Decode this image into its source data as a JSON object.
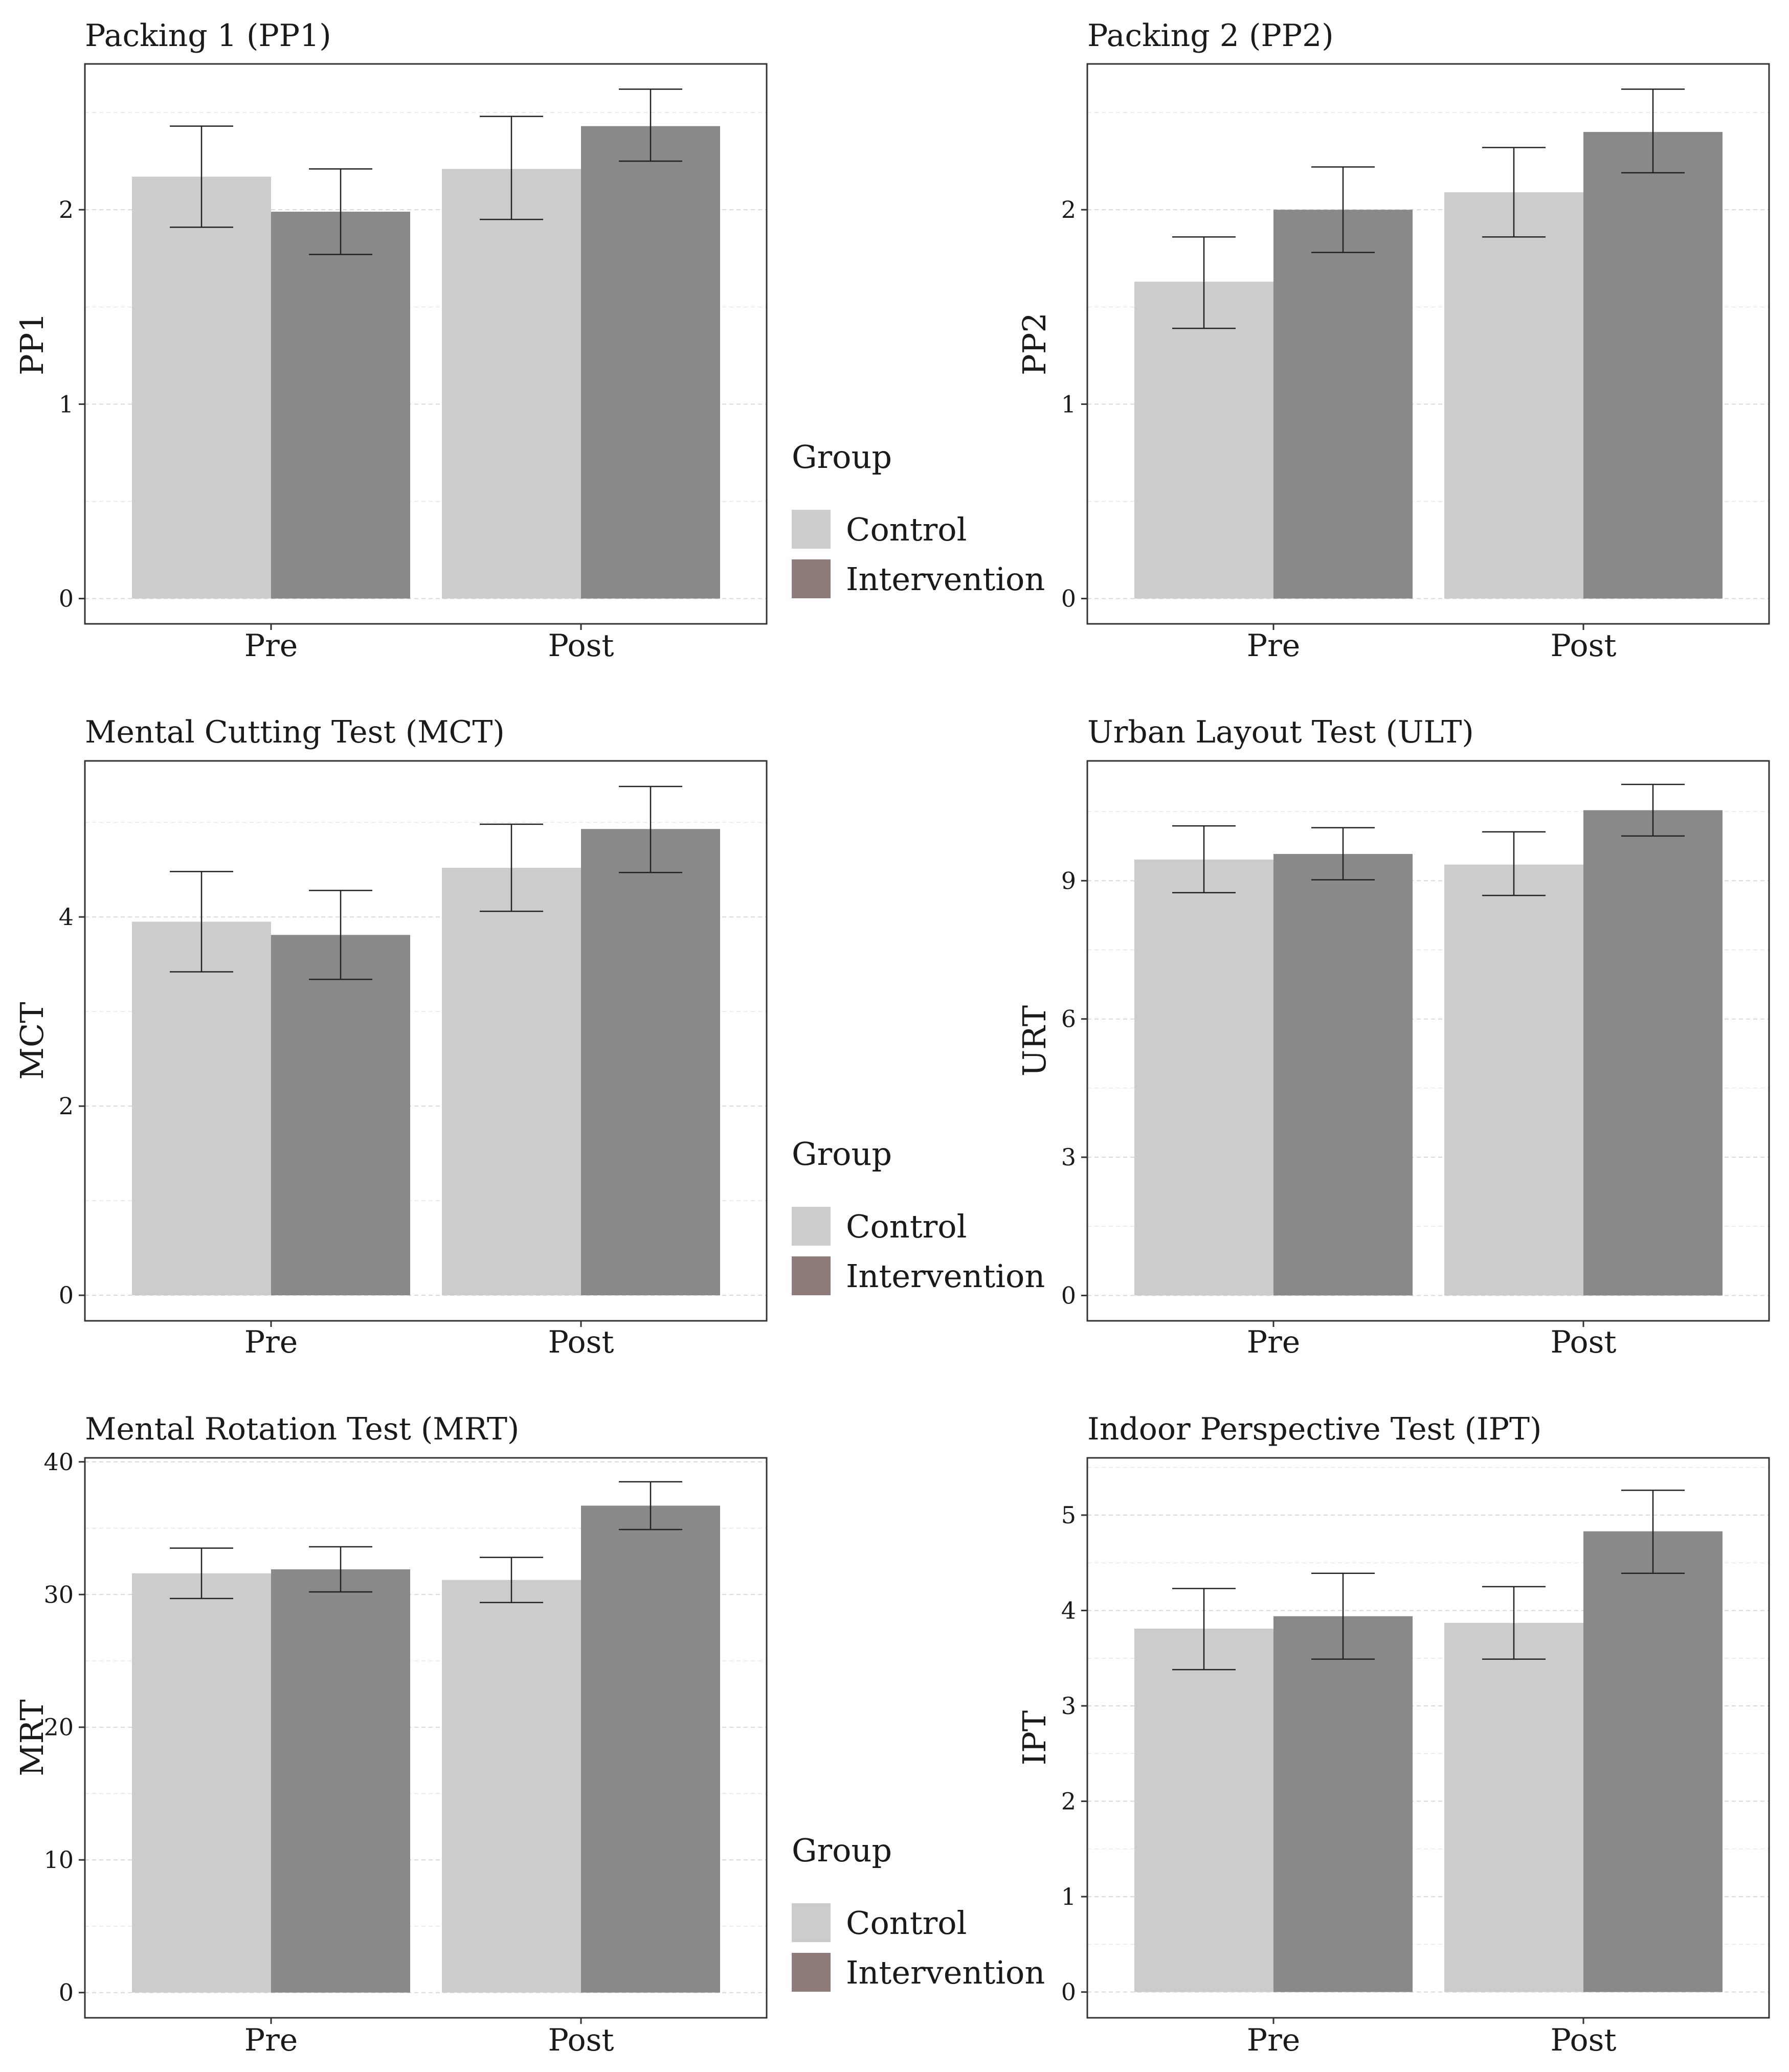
{
  "colors": {
    "control": "#cccccc",
    "intervention_bar": "#898989",
    "intervention_legend": "#8e7b7a",
    "frame": "#333333",
    "grid": "#d9d9d9",
    "error_bar": "#222222"
  },
  "legend": {
    "title": "Group",
    "entries": [
      "Control",
      "Intervention"
    ]
  },
  "chart_data": [
    {
      "type": "bar",
      "title": "Packing 1 (PP1)",
      "xlabel": "",
      "ylabel": "PP1",
      "categories": [
        "Pre",
        "Post"
      ],
      "ylim": [
        -0.13,
        2.75
      ],
      "yticks": [
        0,
        1,
        2
      ],
      "series": [
        {
          "name": "Control",
          "values": [
            2.17,
            2.21
          ],
          "error_low": [
            1.91,
            1.95
          ],
          "error_high": [
            2.43,
            2.48
          ]
        },
        {
          "name": "Intervention",
          "values": [
            1.99,
            2.43
          ],
          "error_low": [
            1.77,
            2.25
          ],
          "error_high": [
            2.21,
            2.62
          ]
        }
      ]
    },
    {
      "type": "bar",
      "title": "Packing 2 (PP2)",
      "xlabel": "",
      "ylabel": "PP2",
      "categories": [
        "Pre",
        "Post"
      ],
      "ylim": [
        -0.13,
        2.75
      ],
      "yticks": [
        0,
        1,
        2
      ],
      "series": [
        {
          "name": "Control",
          "values": [
            1.63,
            2.09
          ],
          "error_low": [
            1.39,
            1.86
          ],
          "error_high": [
            1.86,
            2.32
          ]
        },
        {
          "name": "Intervention",
          "values": [
            2.0,
            2.4
          ],
          "error_low": [
            1.78,
            2.19
          ],
          "error_high": [
            2.22,
            2.62
          ]
        }
      ]
    },
    {
      "type": "bar",
      "title": "Mental Cutting Test (MCT)",
      "xlabel": "",
      "ylabel": "MCT",
      "categories": [
        "Pre",
        "Post"
      ],
      "ylim": [
        -0.27,
        5.65
      ],
      "yticks": [
        0,
        2,
        4
      ],
      "series": [
        {
          "name": "Control",
          "values": [
            3.95,
            4.52
          ],
          "error_low": [
            3.42,
            4.06
          ],
          "error_high": [
            4.48,
            4.98
          ]
        },
        {
          "name": "Intervention",
          "values": [
            3.81,
            4.93
          ],
          "error_low": [
            3.34,
            4.47
          ],
          "error_high": [
            4.28,
            5.38
          ]
        }
      ]
    },
    {
      "type": "bar",
      "title": "Urban Layout Test (ULT)",
      "xlabel": "",
      "ylabel": "URT",
      "categories": [
        "Pre",
        "Post"
      ],
      "ylim": [
        -0.55,
        11.6
      ],
      "yticks": [
        0,
        3,
        6,
        9
      ],
      "series": [
        {
          "name": "Control",
          "values": [
            9.46,
            9.35
          ],
          "error_low": [
            8.74,
            8.68
          ],
          "error_high": [
            10.19,
            10.06
          ]
        },
        {
          "name": "Intervention",
          "values": [
            9.58,
            10.53
          ],
          "error_low": [
            9.02,
            9.97
          ],
          "error_high": [
            10.15,
            11.09
          ]
        }
      ]
    },
    {
      "type": "bar",
      "title": "Mental Rotation Test (MRT)",
      "xlabel": "",
      "ylabel": "MRT",
      "categories": [
        "Pre",
        "Post"
      ],
      "ylim": [
        -1.9,
        40.3
      ],
      "yticks": [
        0,
        10,
        20,
        30,
        40
      ],
      "series": [
        {
          "name": "Control",
          "values": [
            31.6,
            31.1
          ],
          "error_low": [
            29.7,
            29.4
          ],
          "error_high": [
            33.5,
            32.8
          ]
        },
        {
          "name": "Intervention",
          "values": [
            31.9,
            36.7
          ],
          "error_low": [
            30.2,
            34.9
          ],
          "error_high": [
            33.6,
            38.5
          ]
        }
      ]
    },
    {
      "type": "bar",
      "title": "Indoor Perspective Test (IPT)",
      "xlabel": "",
      "ylabel": "IPT",
      "categories": [
        "Pre",
        "Post"
      ],
      "ylim": [
        -0.27,
        5.6
      ],
      "yticks": [
        0,
        1,
        2,
        3,
        4,
        5
      ],
      "series": [
        {
          "name": "Control",
          "values": [
            3.81,
            3.87
          ],
          "error_low": [
            3.38,
            3.49
          ],
          "error_high": [
            4.23,
            4.25
          ]
        },
        {
          "name": "Intervention",
          "values": [
            3.94,
            4.83
          ],
          "error_low": [
            3.49,
            4.39
          ],
          "error_high": [
            4.39,
            5.26
          ]
        }
      ]
    }
  ]
}
